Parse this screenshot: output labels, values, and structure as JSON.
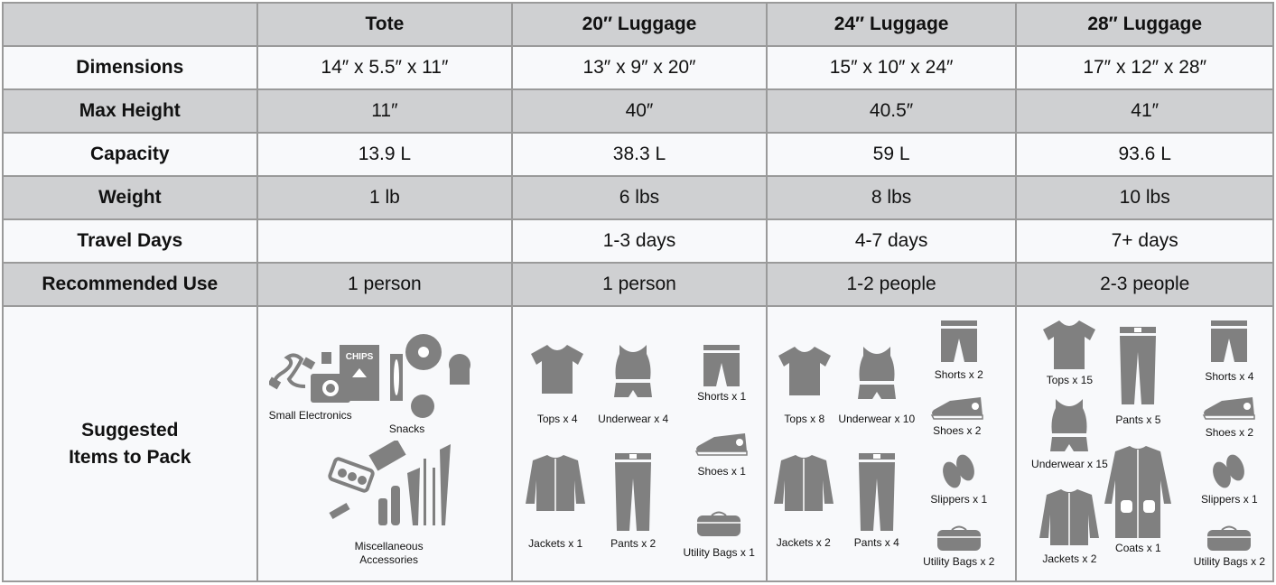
{
  "header": [
    "",
    "Tote",
    "20″ Luggage",
    "24″ Luggage",
    "28″ Luggage"
  ],
  "rows": [
    {
      "label": "Dimensions",
      "values": [
        "14″ x 5.5″ x 11″",
        "13″ x 9″ x 20″",
        "15″ x 10″ x 24″",
        "17″ x 12″ x 28″"
      ]
    },
    {
      "label": "Max Height",
      "values": [
        "11″",
        "40″",
        "40.5″",
        "41″"
      ]
    },
    {
      "label": "Capacity",
      "values": [
        "13.9 L",
        "38.3 L",
        "59 L",
        "93.6 L"
      ]
    },
    {
      "label": "Weight",
      "values": [
        "1 lb",
        "6 lbs",
        "8 lbs",
        "10 lbs"
      ]
    },
    {
      "label": "Travel Days",
      "values": [
        "",
        "1-3 days",
        "4-7 days",
        "7+ days"
      ]
    },
    {
      "label": "Recommended Use",
      "values": [
        "1 person",
        "1 person",
        "1-2 people",
        "2-3 people"
      ]
    }
  ],
  "pack": {
    "label_line1": "Suggested",
    "label_line2": "Items to Pack",
    "columns": [
      [
        {
          "icon": "electronics-icon",
          "label": "Small Electronics"
        },
        {
          "icon": "snacks-icon",
          "label": "Snacks",
          "chips_text": "CHIPS"
        },
        {
          "icon": "accessories-icon",
          "label": "Miscellaneous Accessories"
        }
      ],
      [
        {
          "icon": "top-icon",
          "label": "Tops x 4"
        },
        {
          "icon": "underwear-icon",
          "label": "Underwear x 4"
        },
        {
          "icon": "shorts-icon",
          "label": "Shorts x 1"
        },
        {
          "icon": "shoe-icon",
          "label": "Shoes x 1"
        },
        {
          "icon": "jacket-icon",
          "label": "Jackets x 1"
        },
        {
          "icon": "pants-icon",
          "label": "Pants x 2"
        },
        {
          "icon": "bag-icon",
          "label": "Utility Bags x 1"
        }
      ],
      [
        {
          "icon": "top-icon",
          "label": "Tops x 8"
        },
        {
          "icon": "underwear-icon",
          "label": "Underwear x 10"
        },
        {
          "icon": "shorts-icon",
          "label": "Shorts x 2"
        },
        {
          "icon": "shoe-icon",
          "label": "Shoes x 2"
        },
        {
          "icon": "slippers-icon",
          "label": "Slippers x 1"
        },
        {
          "icon": "bag-icon",
          "label": "Utility Bags x 2"
        },
        {
          "icon": "jacket-icon",
          "label": "Jackets x 2"
        },
        {
          "icon": "pants-icon",
          "label": "Pants x 4"
        }
      ],
      [
        {
          "icon": "top-icon",
          "label": "Tops x 15"
        },
        {
          "icon": "underwear-icon",
          "label": "Underwear x 15"
        },
        {
          "icon": "jacket-icon",
          "label": "Jackets x 2"
        },
        {
          "icon": "pants-icon",
          "label": "Pants x 5"
        },
        {
          "icon": "coat-icon",
          "label": "Coats x 1"
        },
        {
          "icon": "shorts-icon",
          "label": "Shorts x 4"
        },
        {
          "icon": "shoe-icon",
          "label": "Shoes x 2"
        },
        {
          "icon": "slippers-icon",
          "label": "Slippers x 1"
        },
        {
          "icon": "bag-icon",
          "label": "Utility Bags x 2"
        }
      ]
    ]
  },
  "colors": {
    "header_bg": "#cfd0d2",
    "row_light": "#f8f9fb",
    "row_dark": "#cfd0d2",
    "border": "#9a9a9a",
    "icon": "#808080"
  }
}
